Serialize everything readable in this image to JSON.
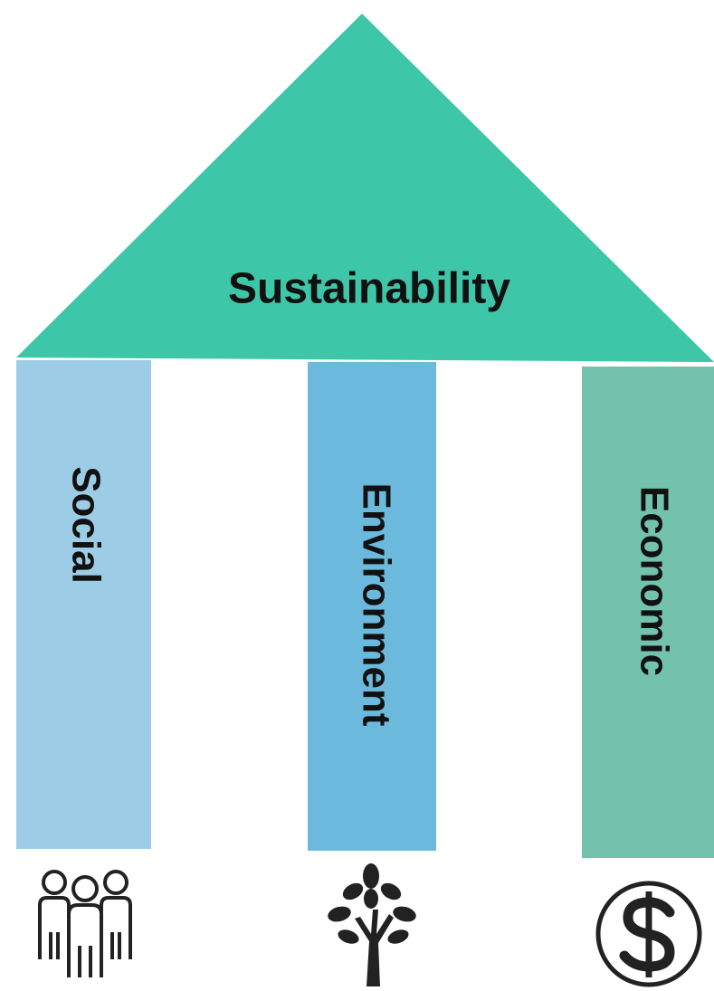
{
  "roof": {
    "label": "Sustainability"
  },
  "pillars": [
    {
      "label": "Social"
    },
    {
      "label": "Environment"
    },
    {
      "label": "Economic"
    }
  ]
}
